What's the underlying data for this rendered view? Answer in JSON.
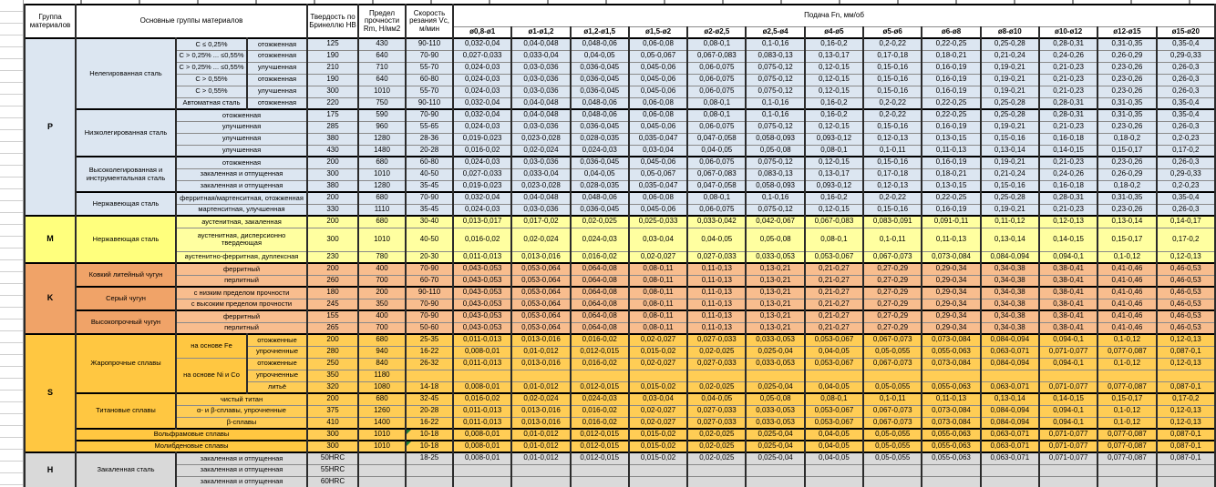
{
  "header": {
    "col_group": "Группа материалов",
    "col_materials": "Основные группы материалов",
    "col_hardness": "Твердость по Бринеллю HB",
    "col_strength": "Предел прочности Rm, Н/мм2",
    "col_speed": "Скорость резания Vc, м/мин",
    "col_feed": "Подача Fn, мм/об",
    "diameters": [
      "ø0,8-ø1",
      "ø1-ø1,2",
      "ø1,2-ø1,5",
      "ø1,5-ø2",
      "ø2-ø2,5",
      "ø2,5-ø4",
      "ø4-ø5",
      "ø5-ø6",
      "ø6-ø8",
      "ø8-ø10",
      "ø10-ø12",
      "ø12-ø15",
      "ø15-ø20"
    ]
  },
  "sections": [
    {
      "id": "P",
      "letter": "P",
      "row_count": 15,
      "cell_color": "#dce6f1",
      "label_color": "#dce6f1"
    },
    {
      "id": "M",
      "letter": "M",
      "row_count": 3,
      "cell_color": "#ffffa0",
      "label_color": "#ffff7d"
    },
    {
      "id": "K",
      "letter": "K",
      "row_count": 6,
      "cell_color": "#f8bd8e",
      "label_color": "#f0a368"
    },
    {
      "id": "S",
      "letter": "S",
      "row_count": 10,
      "cell_color": "#ffcd55",
      "label_color": "#ffc741"
    },
    {
      "id": "H",
      "letter": "H",
      "row_count": 3,
      "cell_color": "#dadada",
      "label_color": "#d9d9d9"
    }
  ],
  "feed_patterns": {
    "a": [
      "0,032-0,04",
      "0,04-0,048",
      "0,048-0,06",
      "0,06-0,08",
      "0,08-0,1",
      "0,1-0,16",
      "0,16-0,2",
      "0,2-0,22",
      "0,22-0,25",
      "0,25-0,28",
      "0,28-0,31",
      "0,31-0,35",
      "0,35-0,4"
    ],
    "b": [
      "0,027-0,033",
      "0,033-0,04",
      "0,04-0,05",
      "0,05-0,067",
      "0,067-0,083",
      "0,083-0,13",
      "0,13-0,17",
      "0,17-0,18",
      "0,18-0,21",
      "0,21-0,24",
      "0,24-0,26",
      "0,26-0,29",
      "0,29-0,33"
    ],
    "c": [
      "0,024-0,03",
      "0,03-0,036",
      "0,036-0,045",
      "0,045-0,06",
      "0,06-0,075",
      "0,075-0,12",
      "0,12-0,15",
      "0,15-0,16",
      "0,16-0,19",
      "0,19-0,21",
      "0,21-0,23",
      "0,23-0,26",
      "0,26-0,3"
    ],
    "d": [
      "0,019-0,023",
      "0,023-0,028",
      "0,028-0,035",
      "0,035-0,047",
      "0,047-0,058",
      "0,058-0,093",
      "0,093-0,12",
      "0,12-0,13",
      "0,13-0,15",
      "0,15-0,16",
      "0,16-0,18",
      "0,18-0,2",
      "0,2-0,23"
    ],
    "e": [
      "0,016-0,02",
      "0,02-0,024",
      "0,024-0,03",
      "0,03-0,04",
      "0,04-0,05",
      "0,05-0,08",
      "0,08-0,1",
      "0,1-0,11",
      "0,11-0,13",
      "0,13-0,14",
      "0,14-0,15",
      "0,15-0,17",
      "0,17-0,2"
    ],
    "f": [
      "0,013-0,017",
      "0,017-0,02",
      "0,02-0,025",
      "0,025-0,033",
      "0,033-0,042",
      "0,042-0,067",
      "0,067-0,083",
      "0,083-0,091",
      "0,091-0,11",
      "0,11-0,12",
      "0,12-0,13",
      "0,13-0,14",
      "0,14-0,17"
    ],
    "g": [
      "0,011-0,013",
      "0,013-0,016",
      "0,016-0,02",
      "0,02-0,027",
      "0,027-0,033",
      "0,033-0,053",
      "0,053-0,067",
      "0,067-0,073",
      "0,073-0,084",
      "0,084-0,094",
      "0,094-0,1",
      "0,1-0,12",
      "0,12-0,13"
    ],
    "h": [
      "0,008-0,01",
      "0,01-0,012",
      "0,012-0,015",
      "0,015-0,02",
      "0,02-0,025",
      "0,025-0,04",
      "0,04-0,05",
      "0,05-0,055",
      "0,055-0,063",
      "0,063-0,071",
      "0,071-0,077",
      "0,077-0,087",
      "0,087-0,1"
    ],
    "k": [
      "0,043-0,053",
      "0,053-0,064",
      "0,064-0,08",
      "0,08-0,11",
      "0,11-0,13",
      "0,13-0,21",
      "0,21-0,27",
      "0,27-0,29",
      "0,29-0,34",
      "0,34-0,38",
      "0,38-0,41",
      "0,41-0,46",
      "0,46-0,53"
    ],
    "blank": [
      "",
      "",
      "",
      "",
      "",
      "",
      "",
      "",
      "",
      "",
      "",
      "",
      ""
    ]
  },
  "rows": [
    {
      "s": "P",
      "m": [
        {
          "t": "Нелегированная сталь",
          "rs": 6
        },
        {
          "t": "C ≤ 0,25%"
        },
        {
          "t": "отожженная"
        }
      ],
      "hb": "125",
      "rm": "430",
      "vc": "90-110",
      "f": "a"
    },
    {
      "s": "P",
      "m": [
        {
          "t": "C > 0,25% ... ≤0,55%"
        },
        {
          "t": "отожженная"
        }
      ],
      "hb": "190",
      "rm": "640",
      "vc": "70-90",
      "f": "b"
    },
    {
      "s": "P",
      "m": [
        {
          "t": "C > 0,25% ... ≤0,55%"
        },
        {
          "t": "улучшенная"
        }
      ],
      "hb": "210",
      "rm": "710",
      "vc": "55-70",
      "f": "c"
    },
    {
      "s": "P",
      "m": [
        {
          "t": "C > 0,55%"
        },
        {
          "t": "отожженная"
        }
      ],
      "hb": "190",
      "rm": "640",
      "vc": "60-80",
      "f": "c"
    },
    {
      "s": "P",
      "m": [
        {
          "t": "C > 0,55%"
        },
        {
          "t": "улучшенная"
        }
      ],
      "hb": "300",
      "rm": "1010",
      "vc": "55-70",
      "f": "c"
    },
    {
      "s": "P",
      "m": [
        {
          "t": "Автоматная сталь"
        },
        {
          "t": "отожженная"
        }
      ],
      "hb": "220",
      "rm": "750",
      "vc": "90-110",
      "f": "a"
    },
    {
      "s": "P",
      "thick": true,
      "m": [
        {
          "t": "Низколегированная сталь",
          "rs": 4
        },
        {
          "t": "отожженная",
          "cs": 2
        }
      ],
      "hb": "175",
      "rm": "590",
      "vc": "70-90",
      "f": "a"
    },
    {
      "s": "P",
      "m": [
        {
          "t": "улучшенная",
          "cs": 2
        }
      ],
      "hb": "285",
      "rm": "960",
      "vc": "55-65",
      "f": "c"
    },
    {
      "s": "P",
      "m": [
        {
          "t": "улучшенная",
          "cs": 2
        }
      ],
      "hb": "380",
      "rm": "1280",
      "vc": "28-36",
      "f": "d"
    },
    {
      "s": "P",
      "m": [
        {
          "t": "улучшенная",
          "cs": 2
        }
      ],
      "hb": "430",
      "rm": "1480",
      "vc": "20-28",
      "f": "e"
    },
    {
      "s": "P",
      "thick": true,
      "m": [
        {
          "t": "Высоколегированная и инструментальная сталь",
          "rs": 3
        },
        {
          "t": "отожженная",
          "cs": 2
        }
      ],
      "hb": "200",
      "rm": "680",
      "vc": "60-80",
      "f": "c"
    },
    {
      "s": "P",
      "m": [
        {
          "t": "закаленная и отпущенная",
          "cs": 2
        }
      ],
      "hb": "300",
      "rm": "1010",
      "vc": "40-50",
      "f": "b"
    },
    {
      "s": "P",
      "m": [
        {
          "t": "закаленная и отпущенная",
          "cs": 2
        }
      ],
      "hb": "380",
      "rm": "1280",
      "vc": "35-45",
      "f": "d"
    },
    {
      "s": "P",
      "thick": true,
      "m": [
        {
          "t": "Нержавеющая сталь",
          "rs": 2
        },
        {
          "t": "ферритная/мартенситная, отожженная",
          "cs": 2
        }
      ],
      "hb": "200",
      "rm": "680",
      "vc": "70-90",
      "f": "a"
    },
    {
      "s": "P",
      "m": [
        {
          "t": "мартенситная, улучшенная",
          "cs": 2
        }
      ],
      "hb": "330",
      "rm": "1110",
      "vc": "35-45",
      "f": "c"
    },
    {
      "s": "M",
      "m": [
        {
          "t": "Нержавеющая сталь",
          "rs": 3
        },
        {
          "t": "аустенитная, закаленная",
          "cs": 2
        }
      ],
      "hb": "200",
      "rm": "680",
      "vc": "30-40",
      "f": "f"
    },
    {
      "s": "M",
      "tall": true,
      "m": [
        {
          "t": "аустенитная, дисперсионно твердеющая",
          "cs": 2
        }
      ],
      "hb": "300",
      "rm": "1010",
      "vc": "40-50",
      "f": "e"
    },
    {
      "s": "M",
      "m": [
        {
          "t": "аустенитно-ферритная, дуплексная",
          "cs": 2
        }
      ],
      "hb": "230",
      "rm": "780",
      "vc": "20-30",
      "f": "g"
    },
    {
      "s": "K",
      "m": [
        {
          "t": "Ковкий литейный чугун",
          "rs": 2
        },
        {
          "t": "ферритный",
          "cs": 2
        }
      ],
      "hb": "200",
      "rm": "400",
      "vc": "70-90",
      "f": "k"
    },
    {
      "s": "K",
      "m": [
        {
          "t": "перлитный",
          "cs": 2
        }
      ],
      "hb": "260",
      "rm": "700",
      "vc": "60-70",
      "f": "k"
    },
    {
      "s": "K",
      "thick": true,
      "m": [
        {
          "t": "Серый чугун",
          "rs": 2
        },
        {
          "t": "с низким пределом прочности",
          "cs": 2
        }
      ],
      "hb": "180",
      "rm": "200",
      "vc": "90-110",
      "f": "k"
    },
    {
      "s": "K",
      "m": [
        {
          "t": "с высоким пределом прочности",
          "cs": 2
        }
      ],
      "hb": "245",
      "rm": "350",
      "vc": "70-90",
      "f": "k"
    },
    {
      "s": "K",
      "thick": true,
      "m": [
        {
          "t": "Высокопрочный чугун",
          "rs": 2
        },
        {
          "t": "ферритный",
          "cs": 2
        }
      ],
      "hb": "155",
      "rm": "400",
      "vc": "70-90",
      "f": "k"
    },
    {
      "s": "K",
      "m": [
        {
          "t": "перлитный",
          "cs": 2
        }
      ],
      "hb": "265",
      "rm": "700",
      "vc": "50-60",
      "f": "k"
    },
    {
      "s": "S",
      "m": [
        {
          "t": "Жаропрочные сплавы",
          "rs": 5
        },
        {
          "t": "на основе Fe",
          "rs": 2
        },
        {
          "t": "отожженные"
        }
      ],
      "hb": "200",
      "rm": "680",
      "vc": "25-35",
      "f": "g"
    },
    {
      "s": "S",
      "m": [
        {
          "t": "упрочненные"
        }
      ],
      "hb": "280",
      "rm": "940",
      "vc": "16-22",
      "f": "h"
    },
    {
      "s": "S",
      "m": [
        {
          "t": "на основе Ni и Co",
          "rs": 3
        },
        {
          "t": "отожженные"
        }
      ],
      "hb": "250",
      "rm": "840",
      "vc": "26-32",
      "f": "g"
    },
    {
      "s": "S",
      "m": [
        {
          "t": "упрочненные"
        }
      ],
      "hb": "350",
      "rm": "1180",
      "vc": "",
      "f": "blank"
    },
    {
      "s": "S",
      "m": [
        {
          "t": "литьё"
        }
      ],
      "hb": "320",
      "rm": "1080",
      "vc": "14-18",
      "f": "h"
    },
    {
      "s": "S",
      "thick": true,
      "m": [
        {
          "t": "Титановые сплавы",
          "rs": 3
        },
        {
          "t": "чистый титан",
          "cs": 2
        }
      ],
      "hb": "200",
      "rm": "680",
      "vc": "32-45",
      "f": "e"
    },
    {
      "s": "S",
      "m": [
        {
          "t": "α- и β-сплавы, упрочненные",
          "cs": 2
        }
      ],
      "hb": "375",
      "rm": "1260",
      "vc": "20-28",
      "f": "g"
    },
    {
      "s": "S",
      "m": [
        {
          "t": "β-сплавы",
          "cs": 2
        }
      ],
      "hb": "410",
      "rm": "1400",
      "vc": "16-22",
      "f": "g"
    },
    {
      "s": "S",
      "thick": true,
      "flag": true,
      "m": [
        {
          "t": "Вольфрамовые сплавы",
          "cs": 3
        }
      ],
      "hb": "300",
      "rm": "1010",
      "vc": "10-18",
      "f": "h"
    },
    {
      "s": "S",
      "thick": true,
      "flag": true,
      "m": [
        {
          "t": "Молибденовые сплавы",
          "cs": 3
        }
      ],
      "hb": "300",
      "rm": "1010",
      "vc": "10-18",
      "f": "h"
    },
    {
      "s": "H",
      "m": [
        {
          "t": "Закаленная сталь",
          "rs": 3
        },
        {
          "t": "закаленная и отпущенная",
          "cs": 2
        }
      ],
      "hb": "50HRC",
      "rm": "",
      "vc": "18-25",
      "f": "h"
    },
    {
      "s": "H",
      "m": [
        {
          "t": "закаленная и отпущенная",
          "cs": 2
        }
      ],
      "hb": "55HRC",
      "rm": "",
      "vc": "",
      "f": "blank"
    },
    {
      "s": "H",
      "m": [
        {
          "t": "закаленная и отпущенная",
          "cs": 2
        }
      ],
      "hb": "60HRC",
      "rm": "",
      "vc": "",
      "f": "blank"
    }
  ]
}
